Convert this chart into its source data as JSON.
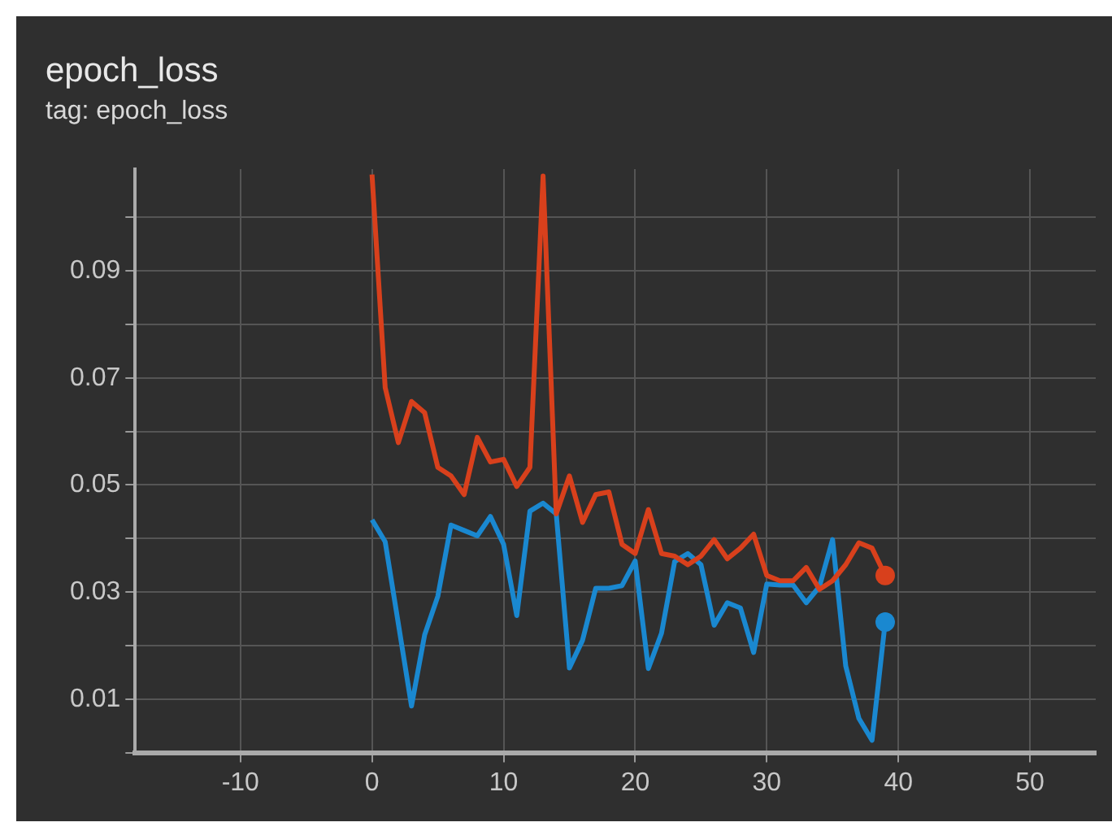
{
  "chart_data": {
    "type": "line",
    "title": "epoch_loss",
    "subtitle": "tag: epoch_loss",
    "x": [
      0,
      1,
      2,
      3,
      4,
      5,
      6,
      7,
      8,
      9,
      10,
      11,
      12,
      13,
      14,
      15,
      16,
      17,
      18,
      19,
      20,
      21,
      22,
      23,
      24,
      25,
      26,
      27,
      28,
      29,
      30,
      31,
      32,
      33,
      34,
      35,
      36,
      37,
      38,
      39
    ],
    "series": [
      {
        "color": "#d8401c",
        "values": [
          0.108,
          0.0682,
          0.0579,
          0.0656,
          0.0635,
          0.0533,
          0.0517,
          0.0482,
          0.0589,
          0.0543,
          0.0548,
          0.0497,
          0.0533,
          0.1077,
          0.0446,
          0.0517,
          0.043,
          0.0482,
          0.0487,
          0.0389,
          0.0372,
          0.0454,
          0.0372,
          0.0367,
          0.0351,
          0.0367,
          0.0398,
          0.0362,
          0.0382,
          0.0408,
          0.0331,
          0.0321,
          0.0321,
          0.0346,
          0.0305,
          0.0321,
          0.0351,
          0.0392,
          0.0382,
          0.0331
        ]
      },
      {
        "color": "#1a88d0",
        "values": [
          0.0435,
          0.0394,
          0.0241,
          0.0087,
          0.022,
          0.0292,
          0.0425,
          0.0415,
          0.0405,
          0.0441,
          0.0389,
          0.0256,
          0.0451,
          0.0466,
          0.0446,
          0.0158,
          0.021,
          0.0307,
          0.0307,
          0.0312,
          0.0358,
          0.0157,
          0.0223,
          0.0357,
          0.0372,
          0.0351,
          0.0238,
          0.028,
          0.027,
          0.0187,
          0.0315,
          0.0313,
          0.0313,
          0.028,
          0.031,
          0.0398,
          0.0162,
          0.0064,
          0.0023,
          0.0244
        ]
      }
    ],
    "xlim": [
      -18,
      55
    ],
    "xticks": [
      -10,
      0,
      10,
      20,
      30,
      40,
      50
    ],
    "ylim": [
      0,
      0.109
    ],
    "yticks": [
      {
        "value": 0.0,
        "label": null
      },
      0.01,
      {
        "value": 0.02,
        "label": null
      },
      0.03,
      {
        "value": 0.04,
        "label": null
      },
      0.05,
      {
        "value": 0.06,
        "label": null
      },
      0.07,
      {
        "value": 0.08,
        "label": null
      },
      0.09,
      {
        "value": 0.1,
        "label": null
      }
    ],
    "grid": true,
    "legend": false,
    "line_style": "solid"
  }
}
